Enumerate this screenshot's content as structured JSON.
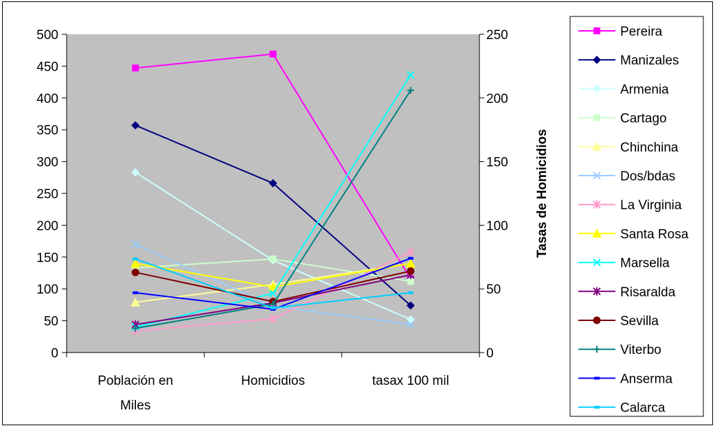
{
  "chart_data": {
    "type": "line",
    "categories": [
      "Población en Miles",
      "Homicidios",
      "tasax 100 mil"
    ],
    "category_lines": [
      [
        "Población en",
        "Miles"
      ],
      [
        "Homicidios"
      ],
      [
        "tasax 100 mil"
      ]
    ],
    "ylim": [
      0,
      500
    ],
    "y_ticks": [
      "0",
      "50",
      "100",
      "150",
      "200",
      "250",
      "300",
      "350",
      "400",
      "450",
      "500"
    ],
    "y2lim": [
      0,
      250
    ],
    "y2_ticks": [
      "0",
      "50",
      "100",
      "150",
      "200",
      "250"
    ],
    "y2label": "Tasas de Homicidios",
    "plot_background": "#c0c0c0",
    "legend_position": "right",
    "series": [
      {
        "name": "Pereira",
        "color": "#ff00ff",
        "marker": "square",
        "values": [
          447,
          469,
          58
        ]
      },
      {
        "name": "Manizales",
        "color": "#000080",
        "marker": "diamond",
        "values": [
          357,
          266,
          37
        ]
      },
      {
        "name": "Armenia",
        "color": "#ccffff",
        "marker": "diamond",
        "values": [
          283,
          145,
          26
        ]
      },
      {
        "name": "Cartago",
        "color": "#ccffcc",
        "marker": "square",
        "values": [
          133,
          147,
          56
        ]
      },
      {
        "name": "Chinchina",
        "color": "#ffff99",
        "marker": "triangle",
        "values": [
          79,
          107,
          70
        ]
      },
      {
        "name": "Dos/bdas",
        "color": "#99ccff",
        "marker": "x",
        "values": [
          170,
          73,
          22
        ]
      },
      {
        "name": "La Virginia",
        "color": "#ff99cc",
        "marker": "asterisk",
        "values": [
          34,
          53,
          79
        ]
      },
      {
        "name": "Santa Rosa",
        "color": "#ffff00",
        "marker": "triangle",
        "values": [
          140,
          103,
          70
        ]
      },
      {
        "name": "Marsella",
        "color": "#00ffff",
        "marker": "x",
        "values": [
          40,
          93,
          218
        ]
      },
      {
        "name": "Risaralda",
        "color": "#800080",
        "marker": "asterisk",
        "values": [
          44,
          78,
          61
        ]
      },
      {
        "name": "Sevilla",
        "color": "#800000",
        "marker": "circle",
        "values": [
          126,
          80,
          64
        ]
      },
      {
        "name": "Viterbo",
        "color": "#008080",
        "marker": "plus",
        "values": [
          38,
          76,
          206
        ]
      },
      {
        "name": "Anserma",
        "color": "#0000ff",
        "marker": "dash",
        "values": [
          94,
          68,
          74
        ]
      },
      {
        "name": "Calarca",
        "color": "#00ccff",
        "marker": "dash",
        "values": [
          147,
          70,
          47
        ]
      }
    ]
  }
}
